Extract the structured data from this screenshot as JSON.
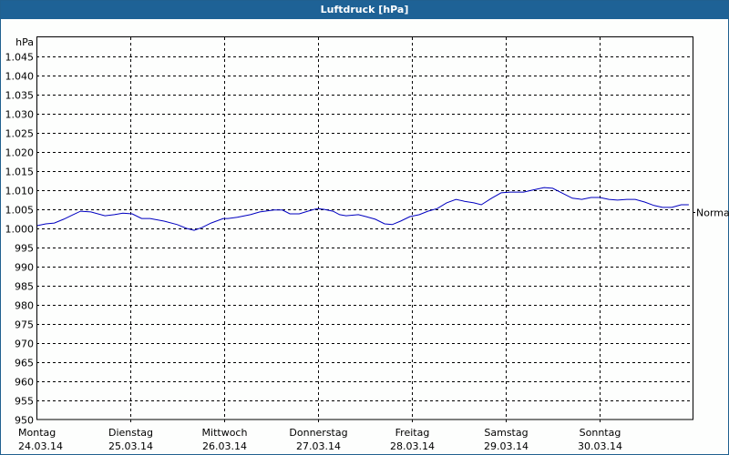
{
  "window": {
    "title": "Luftdruck [hPa]"
  },
  "chart_data": {
    "type": "line",
    "title": "Luftdruck [hPa]",
    "ylabel": "hPa",
    "xlabel": "",
    "ylim": [
      950,
      1047
    ],
    "yticks": [
      950,
      955,
      960,
      965,
      970,
      975,
      980,
      985,
      990,
      995,
      1000,
      1005,
      1010,
      1015,
      1020,
      1025,
      1030,
      1035,
      1040,
      1045
    ],
    "ytick_labels": [
      "950",
      "955",
      "960",
      "965",
      "970",
      "975",
      "980",
      "985",
      "990",
      "995",
      "1.000",
      "1.005",
      "1.010",
      "1.015",
      "1.020",
      "1.025",
      "1.030",
      "1.035",
      "1.040",
      "1.045"
    ],
    "categories": [
      {
        "day": "Montag",
        "date": "24.03.14"
      },
      {
        "day": "Dienstag",
        "date": "25.03.14"
      },
      {
        "day": "Mittwoch",
        "date": "26.03.14"
      },
      {
        "day": "Donnerstag",
        "date": "27.03.14"
      },
      {
        "day": "Freitag",
        "date": "28.03.14"
      },
      {
        "day": "Samstag",
        "date": "29.03.14"
      },
      {
        "day": "Sonntag",
        "date": "30.03.14"
      }
    ],
    "reference_line": {
      "label": "Normal",
      "value": 1005
    },
    "grid": true,
    "series": [
      {
        "name": "Luftdruck",
        "color": "#0000c0",
        "x_days": [
          0,
          0.1,
          0.19,
          0.29,
          0.39,
          0.47,
          0.58,
          0.73,
          0.83,
          0.92,
          1.02,
          1.12,
          1.21,
          1.36,
          1.5,
          1.6,
          1.68,
          1.76,
          1.86,
          1.99,
          2.04,
          2.14,
          2.28,
          2.38,
          2.53,
          2.62,
          2.7,
          2.8,
          2.89,
          2.99,
          3.06,
          3.16,
          3.23,
          3.3,
          3.43,
          3.51,
          3.61,
          3.71,
          3.79,
          3.88,
          3.98,
          4.08,
          4.17,
          4.27,
          4.37,
          4.47,
          4.56,
          4.66,
          4.74,
          4.85,
          4.95,
          5.05,
          5.19,
          5.28,
          5.41,
          5.5,
          5.62,
          5.71,
          5.81,
          5.91,
          6.0,
          6.1,
          6.19,
          6.29,
          6.38,
          6.48,
          6.58,
          6.67,
          6.77,
          6.87,
          6.95
        ],
        "values": [
          1000.7,
          1001.2,
          1001.4,
          1002.4,
          1003.6,
          1004.5,
          1004.3,
          1003.3,
          1003.6,
          1004.0,
          1003.8,
          1002.6,
          1002.6,
          1001.9,
          1001.0,
          1000.0,
          999.5,
          1000.2,
          1001.4,
          1002.6,
          1002.6,
          1002.9,
          1003.6,
          1004.3,
          1004.8,
          1004.8,
          1003.8,
          1003.8,
          1004.5,
          1005.2,
          1005.0,
          1004.5,
          1003.6,
          1003.3,
          1003.6,
          1003.1,
          1002.4,
          1001.2,
          1001.0,
          1001.9,
          1003.1,
          1003.6,
          1004.5,
          1005.2,
          1006.7,
          1007.6,
          1007.1,
          1006.7,
          1006.2,
          1007.9,
          1009.3,
          1009.5,
          1009.5,
          1010.0,
          1010.7,
          1010.5,
          1009.0,
          1007.9,
          1007.6,
          1008.1,
          1008.1,
          1007.6,
          1007.4,
          1007.6,
          1007.6,
          1006.9,
          1006.0,
          1005.5,
          1005.5,
          1006.2,
          1006.2
        ]
      }
    ]
  }
}
